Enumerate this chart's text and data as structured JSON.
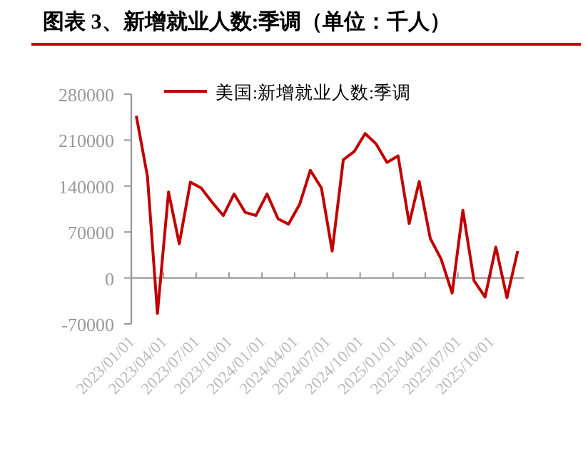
{
  "chart_data": {
    "type": "line",
    "title": "图表 3、新增就业人数:季调（单位：千人）",
    "legend": "top",
    "marker": "none",
    "line_style": "solid",
    "x": [
      "2023-01-15",
      "2023-02-15",
      "2023-03-15",
      "2023-04-15",
      "2023-05-15",
      "2023-06-15",
      "2023-07-15",
      "2023-08-15",
      "2023-09-15",
      "2023-10-15",
      "2023-11-15",
      "2023-12-15",
      "2024-01-15",
      "2024-02-15",
      "2024-03-15",
      "2024-04-15",
      "2024-05-15",
      "2024-06-15",
      "2024-07-15",
      "2024-08-15",
      "2024-09-15",
      "2024-10-15",
      "2024-11-15",
      "2024-12-15",
      "2025-01-15",
      "2025-02-15",
      "2025-03-15",
      "2025-04-15",
      "2025-05-15",
      "2025-06-15",
      "2025-07-15",
      "2025-08-15",
      "2025-09-15",
      "2025-10-15",
      "2025-11-15",
      "2025-12-15"
    ],
    "series": [
      {
        "name": "美国:新增就业人数:季调",
        "color": "#c00000",
        "values": [
          247000,
          155000,
          -54000,
          131000,
          52000,
          146000,
          137000,
          115000,
          95000,
          128000,
          100000,
          95000,
          128000,
          90000,
          82000,
          112000,
          164000,
          137000,
          41000,
          180000,
          193000,
          220000,
          204000,
          176000,
          186000,
          83000,
          147000,
          60000,
          29000,
          -23000,
          103000,
          -4000,
          -29000,
          47000,
          -30000,
          41000
        ]
      }
    ],
    "xlim": [
      "2023-01-01",
      "2026-01-01"
    ],
    "xticks": [
      {
        "value": "2023-01-01",
        "label": "2023/01/01"
      },
      {
        "value": "2023-04-01",
        "label": "2023/04/01"
      },
      {
        "value": "2023-07-01",
        "label": "2023/07/01"
      },
      {
        "value": "2023-10-01",
        "label": "2023/10/01"
      },
      {
        "value": "2024-01-01",
        "label": "2024/01/01"
      },
      {
        "value": "2024-04-01",
        "label": "2024/04/01"
      },
      {
        "value": "2024-07-01",
        "label": "2024/07/01"
      },
      {
        "value": "2024-10-01",
        "label": "2024/10/01"
      },
      {
        "value": "2025-01-01",
        "label": "2025/01/01"
      },
      {
        "value": "2025-04-01",
        "label": "2025/04/01"
      },
      {
        "value": "2025-07-01",
        "label": "2025/07/01"
      },
      {
        "value": "2025-10-01",
        "label": "2025/10/01"
      }
    ],
    "ylim": [
      -70000,
      280000
    ],
    "yticks": [
      -70000,
      0,
      70000,
      140000,
      210000,
      280000
    ]
  }
}
